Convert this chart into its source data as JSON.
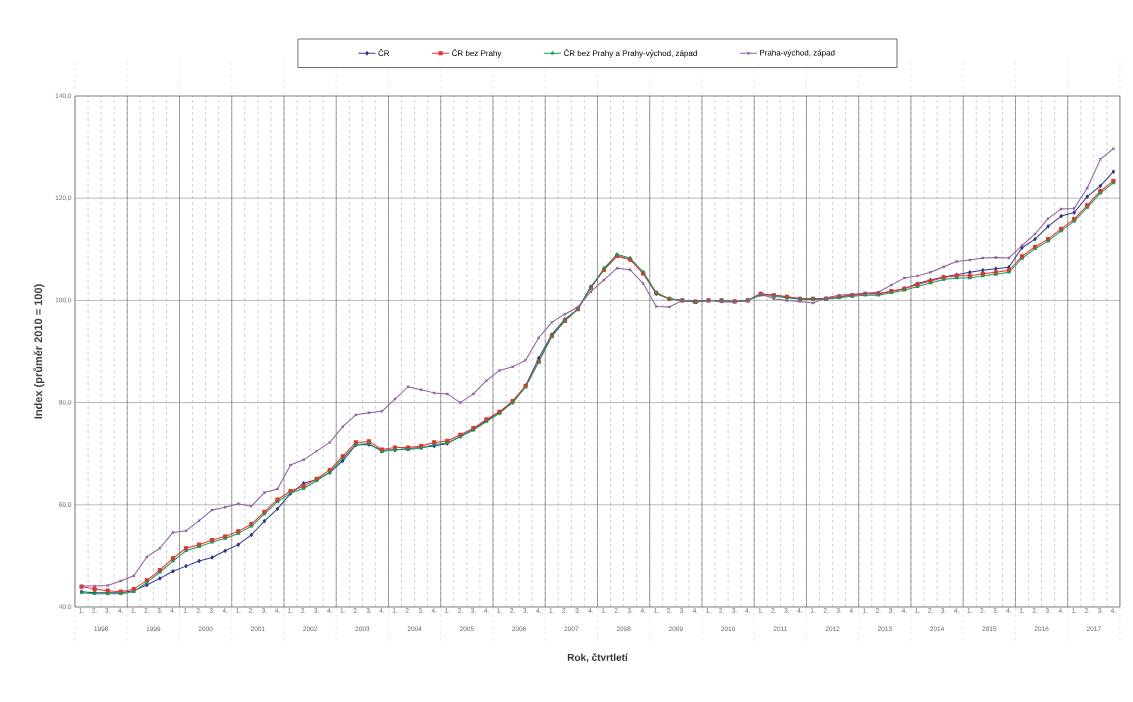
{
  "chart_data": {
    "type": "line",
    "xlabel": "Rok, čtvrtletí",
    "ylabel": "Index (průměr 2010 = 100)",
    "categories": [
      "1.",
      "2.",
      "3.",
      "4.",
      "1.",
      "2.",
      "3.",
      "4.",
      "1.",
      "2.",
      "3.",
      "4.",
      "1.",
      "2.",
      "3.",
      "4.",
      "1.",
      "2.",
      "3.",
      "4.",
      "1.",
      "2.",
      "3.",
      "4.",
      "1.",
      "2.",
      "3.",
      "4.",
      "1.",
      "2.",
      "3.",
      "4.",
      "1.",
      "2.",
      "3.",
      "4.",
      "1.",
      "2.",
      "3.",
      "4.",
      "1.",
      "2.",
      "3.",
      "4.",
      "1.",
      "2.",
      "3.",
      "4.",
      "1.",
      "2.",
      "3.",
      "4.",
      "1.",
      "2.",
      "3.",
      "4.",
      "1.",
      "2.",
      "3.",
      "4.",
      "1.",
      "2.",
      "3.",
      "4.",
      "1.",
      "2.",
      "3.",
      "4.",
      "1.",
      "2.",
      "3.",
      "4.",
      "1.",
      "2.",
      "3.",
      "4.",
      "1.",
      "2.",
      "3.",
      "4."
    ],
    "annotations": [
      "1998",
      "1999",
      "2000",
      "2001",
      "2002",
      "2003",
      "2004",
      "2005",
      "2006",
      "2007",
      "2008",
      "2009",
      "2010",
      "2011",
      "2012",
      "2013",
      "2014",
      "2015",
      "2016",
      "2017"
    ],
    "ylim": [
      40,
      140
    ],
    "yticks": [
      {
        "value": 40,
        "label": "40,0"
      },
      {
        "value": 60,
        "label": "60,0"
      },
      {
        "value": 80,
        "label": "80,0"
      },
      {
        "value": 100,
        "label": "100,0"
      },
      {
        "value": 120,
        "label": "120,0"
      },
      {
        "value": 140,
        "label": "140,0"
      }
    ],
    "grid": true,
    "legend": "top",
    "series": [
      {
        "name": "ČR",
        "color": "#2e3a87",
        "marker": "diamond",
        "values": [
          43.0,
          42.8,
          42.8,
          42.8,
          43.2,
          44.3,
          45.6,
          47.0,
          48.0,
          49.0,
          49.7,
          51.0,
          52.2,
          54.1,
          56.8,
          59.2,
          62.2,
          64.2,
          64.9,
          66.3,
          68.6,
          71.7,
          71.8,
          70.7,
          70.7,
          71.0,
          71.2,
          71.5,
          72.0,
          73.4,
          74.8,
          76.5,
          78.2,
          80.0,
          83.3,
          88.7,
          93.3,
          96.3,
          98.3,
          102.7,
          106.0,
          108.7,
          108.0,
          105.3,
          101.3,
          100.3,
          100.0,
          99.7,
          100.0,
          100.0,
          99.8,
          100.0,
          101.3,
          101.0,
          100.7,
          100.3,
          100.3,
          100.3,
          100.7,
          101.0,
          101.3,
          101.3,
          101.8,
          102.3,
          103.3,
          104.0,
          104.6,
          105.0,
          105.5,
          105.9,
          106.2,
          106.5,
          110.3,
          112.0,
          114.5,
          116.5,
          117.2,
          120.3,
          122.4,
          125.2
        ]
      },
      {
        "name": "ČR bez Prahy",
        "color": "#e8312a",
        "marker": "square",
        "values": [
          44.0,
          43.5,
          43.2,
          43.0,
          43.5,
          45.2,
          47.2,
          49.5,
          51.5,
          52.2,
          53.1,
          53.8,
          54.8,
          56.2,
          58.6,
          61.0,
          62.7,
          63.6,
          65.1,
          66.8,
          69.5,
          72.2,
          72.4,
          70.8,
          71.2,
          71.2,
          71.5,
          72.2,
          72.5,
          73.7,
          75.0,
          76.7,
          78.2,
          80.3,
          83.3,
          88.0,
          93.0,
          96.0,
          98.3,
          102.5,
          106.0,
          108.7,
          108.0,
          105.3,
          101.5,
          100.3,
          100.0,
          99.7,
          100.0,
          100.0,
          99.8,
          100.0,
          101.3,
          101.0,
          100.7,
          100.3,
          100.3,
          100.3,
          100.7,
          101.0,
          101.3,
          101.3,
          101.8,
          102.3,
          103.1,
          103.8,
          104.5,
          104.8,
          104.8,
          105.2,
          105.5,
          105.9,
          108.6,
          110.5,
          112.0,
          114.0,
          115.9,
          118.6,
          121.4,
          123.4
        ]
      },
      {
        "name": "ČR bez Prahy a Prahy-východ, západ",
        "color": "#1a9a5a",
        "marker": "triangle",
        "values": [
          42.8,
          42.6,
          42.6,
          42.6,
          43.0,
          44.8,
          46.8,
          49.0,
          51.0,
          51.8,
          52.7,
          53.4,
          54.4,
          55.8,
          58.2,
          60.6,
          62.3,
          63.2,
          64.7,
          66.4,
          69.1,
          71.8,
          72.0,
          70.4,
          70.8,
          70.8,
          71.1,
          71.8,
          72.1,
          73.3,
          74.6,
          76.3,
          77.9,
          80.0,
          83.0,
          88.0,
          93.0,
          96.0,
          98.3,
          102.5,
          106.3,
          109.0,
          108.3,
          105.6,
          101.5,
          100.3,
          100.0,
          99.7,
          100.0,
          100.0,
          99.8,
          100.0,
          101.0,
          100.8,
          100.5,
          100.2,
          100.2,
          100.2,
          100.5,
          100.8,
          101.0,
          101.0,
          101.5,
          102.0,
          102.7,
          103.4,
          104.1,
          104.4,
          104.4,
          104.8,
          105.1,
          105.5,
          108.2,
          110.1,
          111.6,
          113.6,
          115.5,
          118.2,
          121.0,
          123.0
        ]
      },
      {
        "name": "Praha-východ, západ",
        "color": "#8a5a9e",
        "marker": "cross",
        "values": [
          44.1,
          44.1,
          44.2,
          45.1,
          46.1,
          49.8,
          51.5,
          54.6,
          54.9,
          56.9,
          59.0,
          59.5,
          60.2,
          59.7,
          62.4,
          63.1,
          67.8,
          68.8,
          70.5,
          72.2,
          75.3,
          77.6,
          78.0,
          78.3,
          80.7,
          83.1,
          82.5,
          81.9,
          81.7,
          80.0,
          81.7,
          84.3,
          86.3,
          87.0,
          88.3,
          92.7,
          95.7,
          97.3,
          98.7,
          101.7,
          104.0,
          106.3,
          106.0,
          103.3,
          98.8,
          98.7,
          100.0,
          100.0,
          100.0,
          99.7,
          99.7,
          100.0,
          101.3,
          100.3,
          100.0,
          99.8,
          99.5,
          100.5,
          101.0,
          101.2,
          101.4,
          101.6,
          103.0,
          104.4,
          104.8,
          105.5,
          106.6,
          107.6,
          107.9,
          108.3,
          108.4,
          108.3,
          110.7,
          113.0,
          116.0,
          117.9,
          118.0,
          122.0,
          127.6,
          129.7
        ]
      }
    ]
  }
}
